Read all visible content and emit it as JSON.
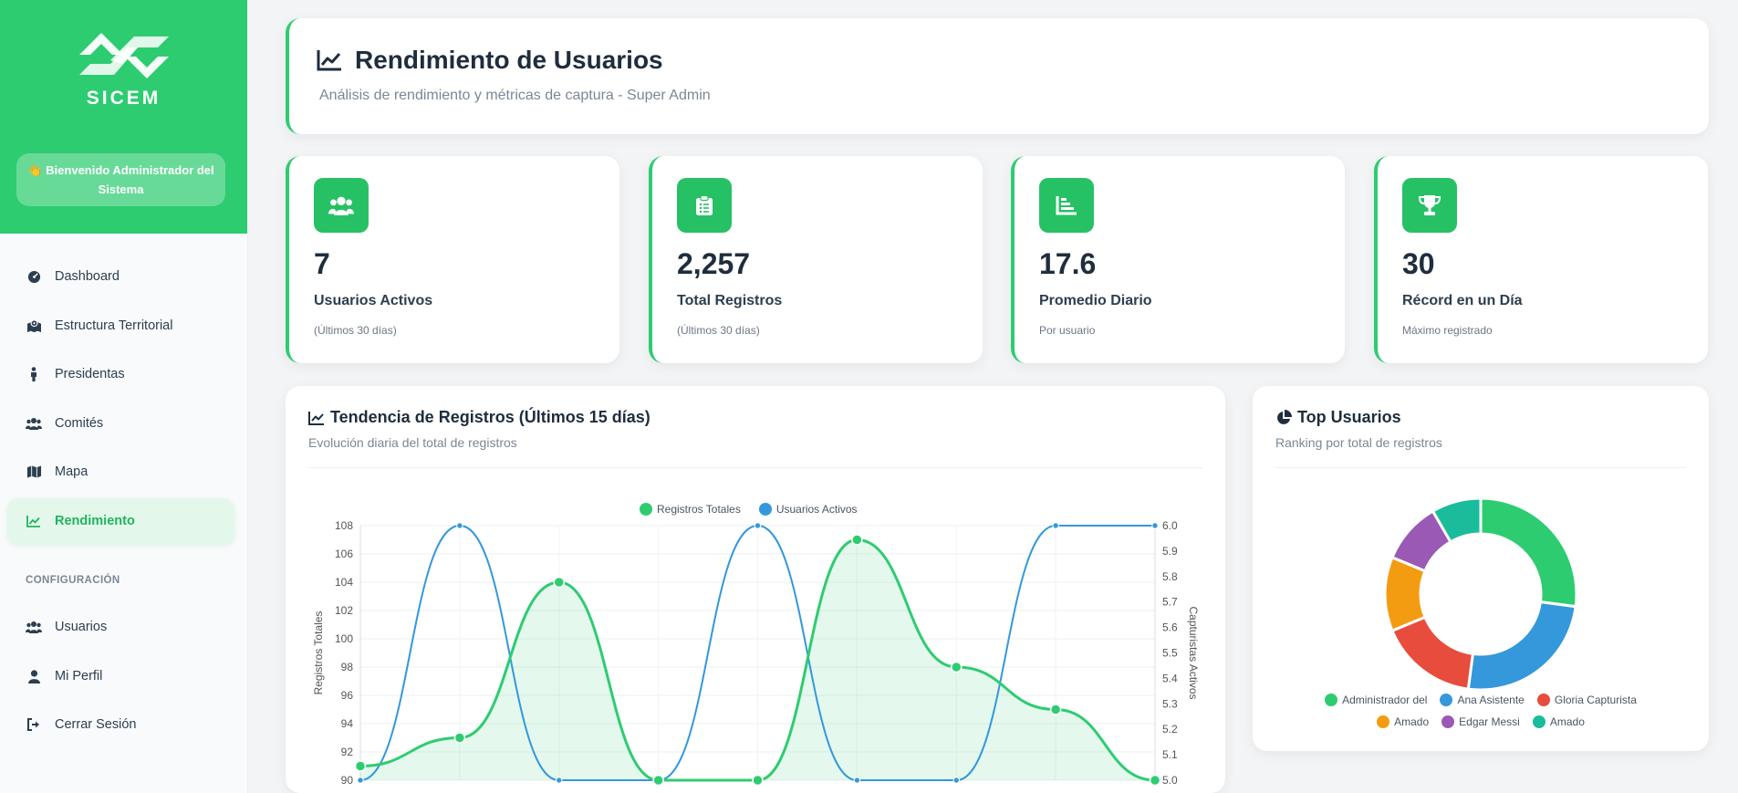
{
  "sidebar": {
    "brand": "SICEM",
    "welcome": "👋 Bienvenido Administrador del Sistema",
    "items": [
      {
        "label": "Dashboard",
        "icon": "gauge-icon"
      },
      {
        "label": "Estructura Territorial",
        "icon": "map-location-icon"
      },
      {
        "label": "Presidentas",
        "icon": "person-icon"
      },
      {
        "label": "Comités",
        "icon": "users-icon"
      },
      {
        "label": "Mapa",
        "icon": "map-icon"
      },
      {
        "label": "Rendimiento",
        "icon": "chart-line-icon",
        "active": true
      }
    ],
    "section_config": "CONFIGURACIÓN",
    "config_items": [
      {
        "label": "Usuarios",
        "icon": "users-icon"
      },
      {
        "label": "Mi Perfil",
        "icon": "user-icon"
      },
      {
        "label": "Cerrar Sesión",
        "icon": "logout-icon"
      }
    ]
  },
  "header": {
    "title": "Rendimiento de Usuarios",
    "subtitle": "Análisis de rendimiento y métricas de captura - Super Admin"
  },
  "stats": [
    {
      "value": "7",
      "label": "Usuarios Activos",
      "note": "(Últimos 30 días)",
      "icon": "users-icon"
    },
    {
      "value": "2,257",
      "label": "Total Registros",
      "note": "(Últimos 30 días)",
      "icon": "clipboard-list-icon"
    },
    {
      "value": "17.6",
      "label": "Promedio Diario",
      "note": "Por usuario",
      "icon": "bar-chart-icon"
    },
    {
      "value": "30",
      "label": "Récord en un Día",
      "note": "Máximo registrado",
      "icon": "trophy-icon"
    }
  ],
  "trend": {
    "title": "Tendencia de Registros (Últimos 15 días)",
    "subtitle": "Evolución diaria del total de registros"
  },
  "top_users": {
    "title": "Top Usuarios",
    "subtitle": "Ranking por total de registros"
  },
  "colors": {
    "green": "#2ecc71",
    "blue": "#3498db",
    "red": "#e74c3c",
    "orange": "#f39c12",
    "purple": "#9b59b6",
    "teal": "#1abc9c"
  },
  "chart_data": [
    {
      "type": "line",
      "series": [
        {
          "name": "Registros Totales",
          "axis": "left",
          "color": "#2ecc71",
          "values": [
            91,
            93,
            104,
            90,
            90,
            107,
            98,
            95,
            90
          ]
        },
        {
          "name": "Usuarios Activos",
          "axis": "right",
          "color": "#3498db",
          "values": [
            5.0,
            6.0,
            5.0,
            5.0,
            6.0,
            5.0,
            5.0,
            6.0,
            6.0
          ]
        }
      ],
      "ylabel": "Registros Totales",
      "y2label": "Capturistas Activos",
      "ylim": [
        90,
        108
      ],
      "yticks": [
        "108",
        "106",
        "104",
        "102",
        "100",
        "98",
        "96",
        "94",
        "92",
        "90"
      ],
      "y2lim": [
        5.0,
        6.0
      ],
      "y2ticks": [
        "6.0",
        "5.9",
        "5.8",
        "5.7",
        "5.6",
        "5.5",
        "5.4",
        "5.3",
        "5.2",
        "5.1",
        "5.0"
      ],
      "legend": "top",
      "grid": true
    },
    {
      "type": "pie",
      "donut": true,
      "labels": [
        "Administrador del",
        "Ana Asistente",
        "Gloria Capturista",
        "Amado",
        "Edgar Messi",
        "Amado"
      ],
      "values": [
        26,
        24,
        16,
        12,
        10,
        8
      ],
      "colors": [
        "#2ecc71",
        "#3498db",
        "#e74c3c",
        "#f39c12",
        "#9b59b6",
        "#1abc9c"
      ],
      "legend": "bottom"
    }
  ]
}
